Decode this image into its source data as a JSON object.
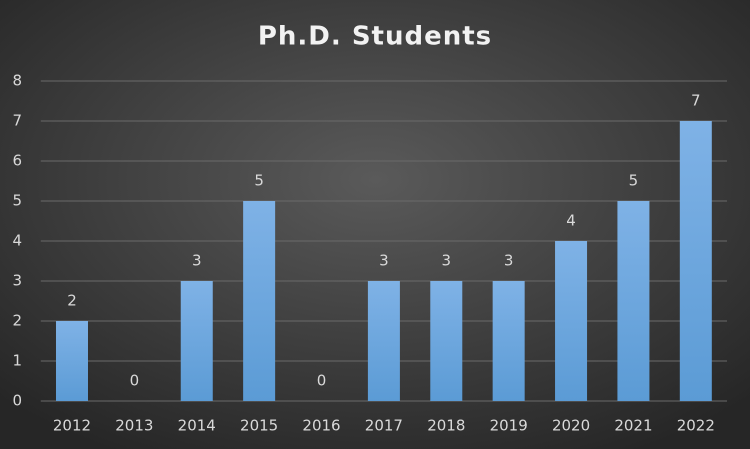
{
  "chart_data": {
    "type": "bar",
    "title": "Ph.D. Students",
    "categories": [
      "2012",
      "2013",
      "2014",
      "2015",
      "2016",
      "2017",
      "2018",
      "2019",
      "2020",
      "2021",
      "2022"
    ],
    "values": [
      2,
      0,
      3,
      5,
      0,
      3,
      3,
      3,
      4,
      5,
      7
    ],
    "color": "#5b9bd5",
    "ylim": [
      0,
      8
    ],
    "yticks": [
      0,
      1,
      2,
      3,
      4,
      5,
      6,
      7,
      8
    ],
    "grid": true
  }
}
